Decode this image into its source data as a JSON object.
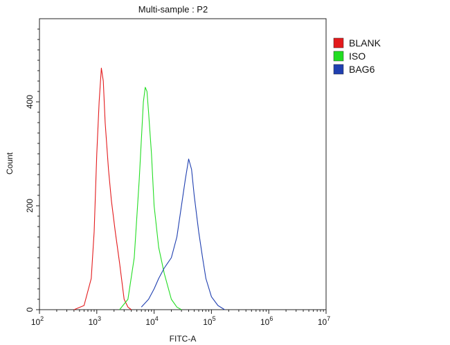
{
  "chart_data": {
    "type": "line",
    "title": "Multi-sample : P2",
    "xlabel": "FITC-A",
    "ylabel": "Count",
    "x_scale": "log",
    "xlim": [
      100,
      10000000
    ],
    "ylim": [
      0,
      560
    ],
    "x_ticks": [
      {
        "value": 100,
        "base": "10",
        "exp": "2"
      },
      {
        "value": 1000,
        "base": "10",
        "exp": "3"
      },
      {
        "value": 10000,
        "base": "10",
        "exp": "4"
      },
      {
        "value": 100000,
        "base": "10",
        "exp": "5"
      },
      {
        "value": 1000000,
        "base": "10",
        "exp": "6"
      },
      {
        "value": 10000000,
        "base": "10",
        "exp": "7"
      }
    ],
    "y_ticks": [
      0,
      200,
      400
    ],
    "legend_position": "right",
    "series": [
      {
        "name": "BLANK",
        "color": "#e31a1c",
        "x": [
          400,
          600,
          800,
          900,
          1000,
          1100,
          1200,
          1300,
          1400,
          1600,
          1800,
          2100,
          2500,
          3000,
          3500,
          4000
        ],
        "y": [
          0,
          8,
          60,
          150,
          300,
          400,
          465,
          440,
          360,
          270,
          210,
          150,
          90,
          20,
          5,
          0
        ]
      },
      {
        "name": "ISO",
        "color": "#22dd22",
        "x": [
          2500,
          3500,
          4500,
          5500,
          6500,
          7000,
          7500,
          8000,
          9000,
          10000,
          12000,
          15000,
          20000,
          25000,
          30000
        ],
        "y": [
          0,
          20,
          100,
          250,
          400,
          428,
          420,
          380,
          300,
          200,
          120,
          70,
          20,
          5,
          0
        ]
      },
      {
        "name": "BAG6",
        "color": "#1f3fb0",
        "x": [
          6000,
          8000,
          10000,
          12000,
          15000,
          20000,
          25000,
          30000,
          35000,
          40000,
          45000,
          50000,
          60000,
          70000,
          80000,
          100000,
          130000,
          170000
        ],
        "y": [
          5,
          20,
          40,
          60,
          80,
          100,
          140,
          200,
          250,
          290,
          270,
          220,
          150,
          100,
          60,
          25,
          8,
          0
        ]
      }
    ]
  }
}
